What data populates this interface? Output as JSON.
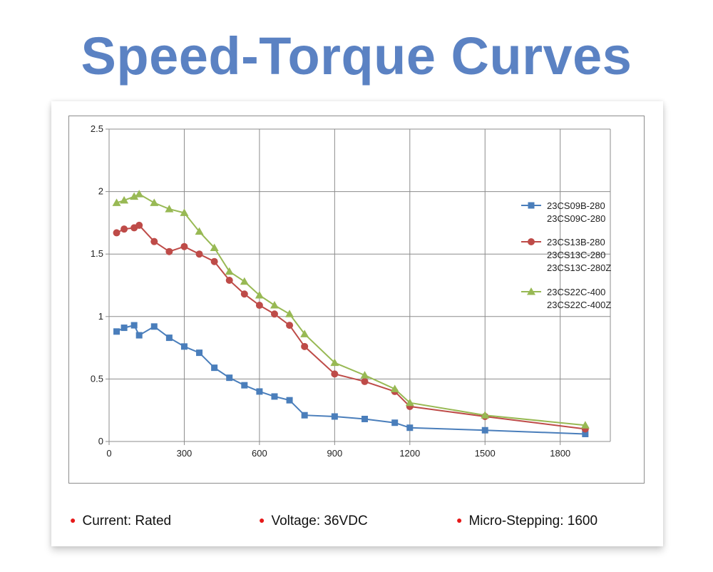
{
  "page": {
    "title": "Speed-Torque Curves"
  },
  "notes": [
    {
      "label": "Current: Rated"
    },
    {
      "label": "Voltage: 36VDC"
    },
    {
      "label": "Micro-Stepping: 1600"
    }
  ],
  "chart_data": {
    "type": "line",
    "title": "",
    "xlabel": "",
    "ylabel": "",
    "xlim": [
      0,
      2000
    ],
    "ylim": [
      0,
      2.5
    ],
    "x_ticks": [
      0,
      300,
      600,
      900,
      1200,
      1500,
      1800
    ],
    "y_ticks": [
      0,
      0.5,
      1,
      1.5,
      2,
      2.5
    ],
    "y_tick_labels": [
      "0",
      "0.5",
      "1",
      "1.5",
      "2",
      "2.5"
    ],
    "grid": true,
    "legend_position": "right",
    "series": [
      {
        "name_lines": [
          "23CS09B-280",
          "23CS09C-280"
        ],
        "color": "#4a7ebb",
        "marker": "square",
        "points": [
          [
            30,
            0.88
          ],
          [
            60,
            0.91
          ],
          [
            100,
            0.93
          ],
          [
            120,
            0.85
          ],
          [
            180,
            0.92
          ],
          [
            240,
            0.83
          ],
          [
            300,
            0.76
          ],
          [
            360,
            0.71
          ],
          [
            420,
            0.59
          ],
          [
            480,
            0.51
          ],
          [
            540,
            0.45
          ],
          [
            600,
            0.4
          ],
          [
            660,
            0.36
          ],
          [
            720,
            0.33
          ],
          [
            780,
            0.21
          ],
          [
            900,
            0.2
          ],
          [
            1020,
            0.18
          ],
          [
            1140,
            0.15
          ],
          [
            1200,
            0.11
          ],
          [
            1500,
            0.09
          ],
          [
            1900,
            0.06
          ]
        ]
      },
      {
        "name_lines": [
          "23CS13B-280",
          "23CS13C-280",
          "23CS13C-280Z"
        ],
        "color": "#be4b48",
        "marker": "circle",
        "points": [
          [
            30,
            1.67
          ],
          [
            60,
            1.7
          ],
          [
            100,
            1.71
          ],
          [
            120,
            1.73
          ],
          [
            180,
            1.6
          ],
          [
            240,
            1.52
          ],
          [
            300,
            1.56
          ],
          [
            360,
            1.5
          ],
          [
            420,
            1.44
          ],
          [
            480,
            1.29
          ],
          [
            540,
            1.18
          ],
          [
            600,
            1.09
          ],
          [
            660,
            1.02
          ],
          [
            720,
            0.93
          ],
          [
            780,
            0.76
          ],
          [
            900,
            0.54
          ],
          [
            1020,
            0.48
          ],
          [
            1140,
            0.4
          ],
          [
            1200,
            0.28
          ],
          [
            1500,
            0.2
          ],
          [
            1900,
            0.1
          ]
        ]
      },
      {
        "name_lines": [
          "23CS22C-400",
          "23CS22C-400Z"
        ],
        "color": "#98b954",
        "marker": "triangle",
        "points": [
          [
            30,
            1.91
          ],
          [
            60,
            1.93
          ],
          [
            100,
            1.96
          ],
          [
            120,
            1.98
          ],
          [
            180,
            1.91
          ],
          [
            240,
            1.86
          ],
          [
            300,
            1.83
          ],
          [
            360,
            1.68
          ],
          [
            420,
            1.55
          ],
          [
            480,
            1.36
          ],
          [
            540,
            1.28
          ],
          [
            600,
            1.17
          ],
          [
            660,
            1.09
          ],
          [
            720,
            1.02
          ],
          [
            780,
            0.86
          ],
          [
            900,
            0.63
          ],
          [
            1020,
            0.53
          ],
          [
            1140,
            0.42
          ],
          [
            1200,
            0.31
          ],
          [
            1500,
            0.21
          ],
          [
            1900,
            0.13
          ]
        ]
      }
    ]
  }
}
